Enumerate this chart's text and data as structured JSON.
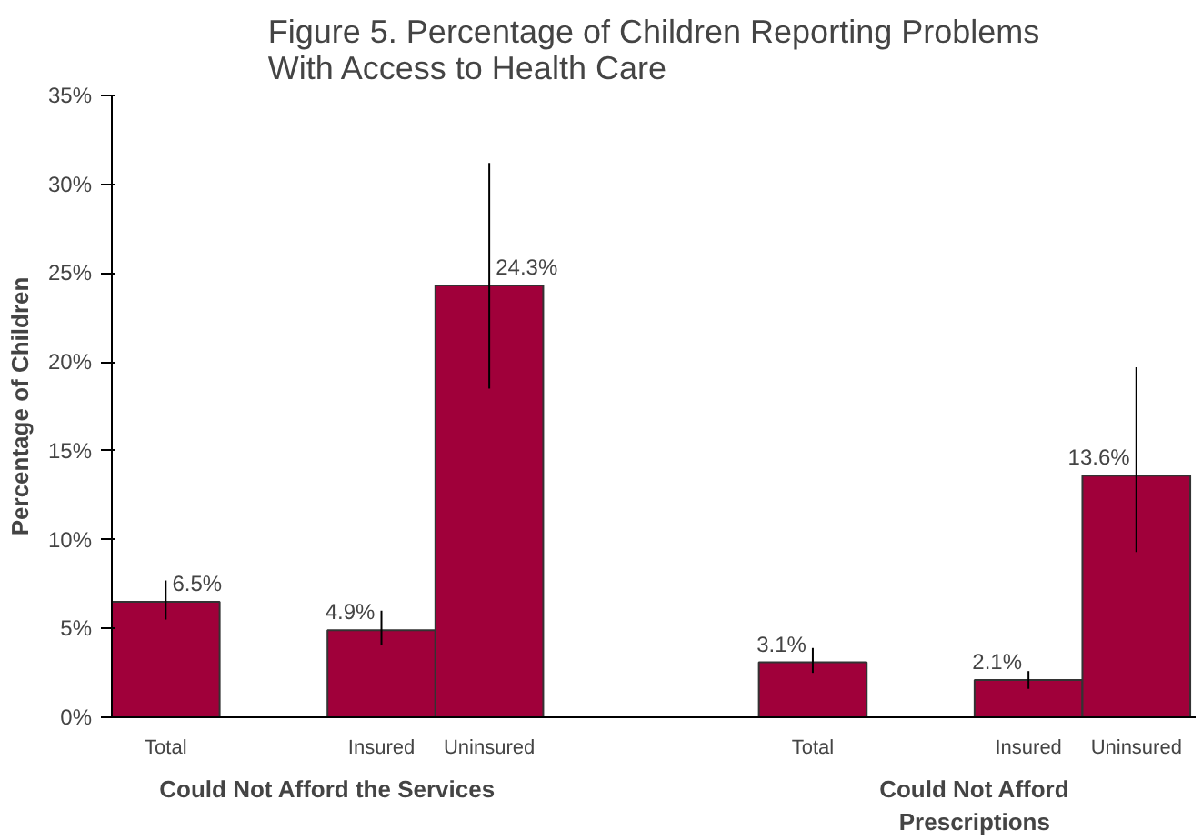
{
  "chart_data": {
    "type": "bar",
    "title": "Figure 5. Percentage of Children Reporting Problems With Access to Health Care",
    "ylabel": "Percentage of Children",
    "categories": [
      "Total",
      null,
      "Insured",
      "Uninsured",
      null,
      null,
      "Total",
      null,
      "Insured",
      "Uninsured"
    ],
    "values": [
      6.5,
      null,
      4.9,
      24.3,
      null,
      null,
      3.1,
      null,
      2.1,
      13.6
    ],
    "errors": [
      [
        5.5,
        7.7
      ],
      null,
      [
        4.05,
        6.0
      ],
      [
        18.5,
        31.2
      ],
      null,
      null,
      [
        2.5,
        3.9
      ],
      null,
      [
        1.6,
        2.6
      ],
      [
        9.3,
        19.7
      ]
    ],
    "value_labels": [
      "6.5%",
      null,
      "4.9%",
      "24.3%",
      null,
      null,
      "3.1%",
      null,
      "2.1%",
      "13.6%"
    ],
    "color": "#a0003a",
    "ylim": [
      0,
      35
    ],
    "yticks": [
      {
        "value": 0,
        "label": "0%"
      },
      {
        "value": 5,
        "label": "5%"
      },
      {
        "value": 10,
        "label": "10%"
      },
      {
        "value": 15,
        "label": "15%"
      },
      {
        "value": 20,
        "label": "20%"
      },
      {
        "value": 25,
        "label": "25%"
      },
      {
        "value": 30,
        "label": "30%"
      },
      {
        "value": 35,
        "label": "35%"
      }
    ],
    "annotations": [
      "Could Not Afford the Services",
      "Could Not Afford Prescriptions"
    ],
    "grid": false
  }
}
